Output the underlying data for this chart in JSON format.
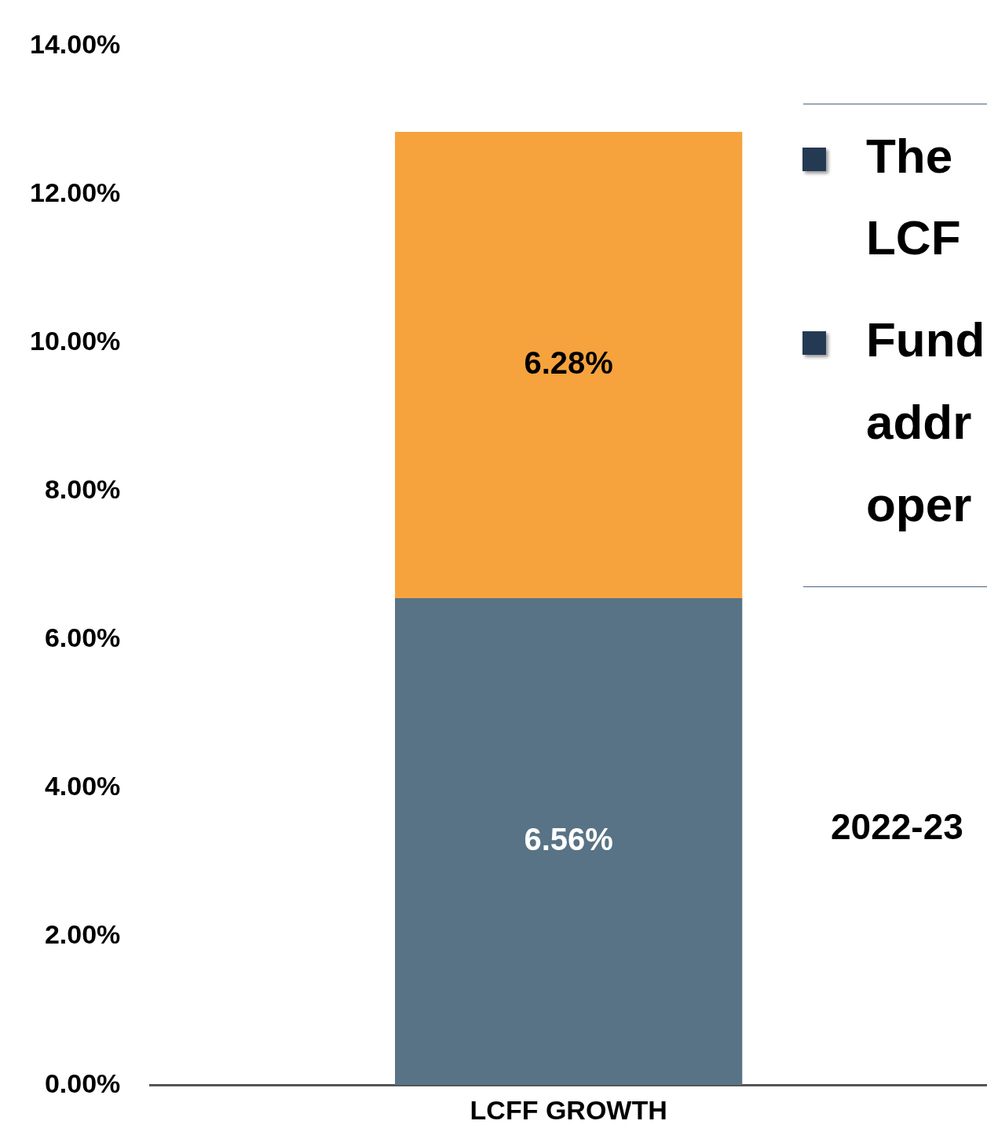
{
  "chart_data": {
    "type": "bar",
    "stacked": true,
    "categories": [
      "LCFF GROWTH"
    ],
    "series": [
      {
        "color": "#587385",
        "values": [
          6.56
        ],
        "value_labels": [
          "6.56%"
        ]
      },
      {
        "color": "#f6a33e",
        "values": [
          6.28
        ],
        "value_labels": [
          "6.28%"
        ]
      }
    ],
    "ylim": [
      0,
      14
    ],
    "yticks": [
      {
        "value": 0,
        "label": "0.00%"
      },
      {
        "value": 2,
        "label": "2.00%"
      },
      {
        "value": 4,
        "label": "4.00%"
      },
      {
        "value": 6,
        "label": "6.00%"
      },
      {
        "value": 8,
        "label": "8.00%"
      },
      {
        "value": 10,
        "label": "10.00%"
      },
      {
        "value": 12,
        "label": "12.00%"
      },
      {
        "value": 14,
        "label": "14.00%"
      }
    ],
    "legend": false,
    "annotations": [
      "The",
      "LCF",
      "Fund",
      "addr",
      "oper",
      "2022-23"
    ]
  }
}
